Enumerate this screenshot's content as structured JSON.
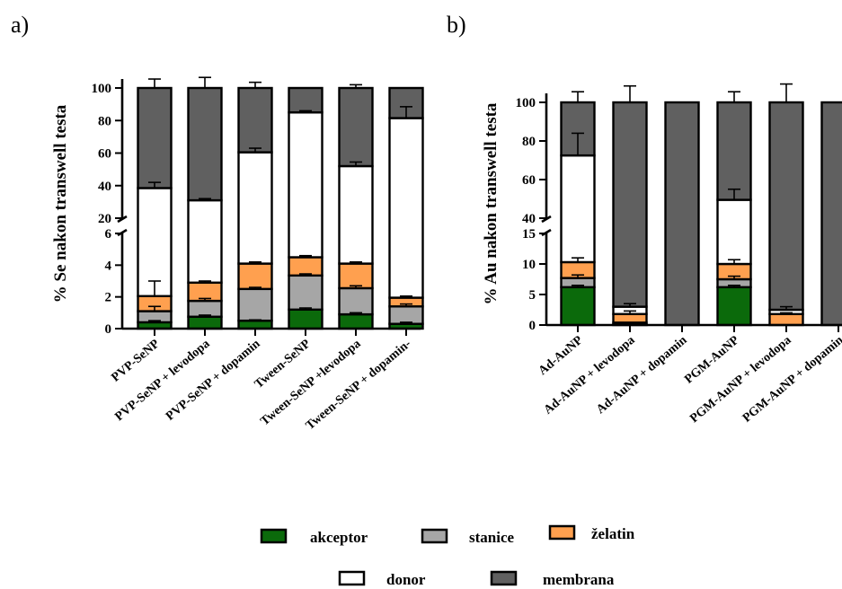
{
  "panel_labels": [
    "a)",
    "b)"
  ],
  "legend": {
    "row1": [
      {
        "key": "akceptor",
        "label": "akceptor",
        "color": "#0b6a0b"
      },
      {
        "key": "stanice",
        "label": "stanice",
        "color": "#a6a6a6"
      },
      {
        "key": "zelatin",
        "label": "želatin",
        "color": "#ffa04f"
      }
    ],
    "row2": [
      {
        "key": "donor",
        "label": "donor",
        "color": "#ffffff"
      },
      {
        "key": "membrana",
        "label": "membrana",
        "color": "#606060"
      }
    ]
  },
  "chart_data": [
    {
      "type": "bar",
      "stacked": true,
      "axis_break": {
        "lower": [
          0,
          6
        ],
        "upper": [
          20,
          100
        ]
      },
      "ylabel": "% Se nakon transwell testa",
      "yticks_lower": [
        "0",
        "2",
        "4",
        "6"
      ],
      "yticks_upper": [
        "20",
        "40",
        "60",
        "80",
        "100"
      ],
      "categories": [
        "PVP-SeNP",
        "PVP-SeNP + levodopa",
        "PVP-SeNP + dopamin",
        "Tween-SeNP",
        "Tween-SeNP +levodopa",
        "Tween-SeNP + dopamin-"
      ],
      "cumulative_tops": {
        "akceptor": [
          0.4,
          0.75,
          0.5,
          1.2,
          0.9,
          0.3
        ],
        "stanice": [
          1.1,
          1.75,
          2.5,
          3.35,
          2.55,
          1.4
        ],
        "zelatin": [
          2.05,
          2.9,
          4.1,
          4.5,
          4.1,
          1.95
        ],
        "donor": [
          38.5,
          31,
          60.5,
          85,
          52,
          81.5
        ],
        "membrana": [
          100,
          100,
          100,
          100,
          100,
          100
        ]
      },
      "error_tops": {
        "akceptor": [
          0.5,
          0.85,
          0.55,
          1.3,
          1.0,
          0.4
        ],
        "stanice": [
          1.4,
          1.9,
          2.6,
          3.45,
          2.7,
          1.55
        ],
        "zelatin": [
          3.0,
          3.0,
          4.2,
          4.6,
          4.2,
          2.05
        ],
        "donor": [
          42,
          32,
          63,
          86,
          54.5,
          88.5
        ],
        "membrana": [
          105.5,
          106.5,
          103.5,
          100,
          102,
          100
        ]
      }
    },
    {
      "type": "bar",
      "stacked": true,
      "axis_break": {
        "lower": [
          0,
          15
        ],
        "upper": [
          40,
          100
        ]
      },
      "ylabel": "% Au nakon transwell testa",
      "yticks_lower": [
        "0",
        "5",
        "10",
        "15"
      ],
      "yticks_upper": [
        "40",
        "60",
        "80",
        "100"
      ],
      "categories": [
        "Ad-AuNP",
        "Ad-AuNP + levodopa",
        "Ad-AuNP + dopamin",
        "PGM-AuNP",
        "PGM-AuNP + levodopa",
        "PGM-AuNP + dopamin"
      ],
      "cumulative_tops": {
        "akceptor": [
          6.2,
          0.1,
          0,
          6.2,
          0,
          0
        ],
        "stanice": [
          7.7,
          0.4,
          0,
          7.5,
          0,
          0
        ],
        "zelatin": [
          10.3,
          1.8,
          0,
          10,
          1.8,
          0
        ],
        "donor": [
          72.5,
          3,
          0,
          49.5,
          2.5,
          0
        ],
        "membrana": [
          100,
          100,
          100,
          100,
          100,
          100
        ]
      },
      "error_tops": {
        "akceptor": [
          6.5,
          null,
          null,
          6.5,
          null,
          null
        ],
        "stanice": [
          8.2,
          null,
          null,
          8.0,
          null,
          null
        ],
        "zelatin": [
          11.0,
          2.3,
          null,
          10.7,
          2.0,
          null
        ],
        "donor": [
          84,
          3.5,
          null,
          55,
          3.0,
          null
        ],
        "membrana": [
          105.5,
          108.5,
          100,
          105.5,
          109.5,
          100
        ]
      }
    }
  ]
}
